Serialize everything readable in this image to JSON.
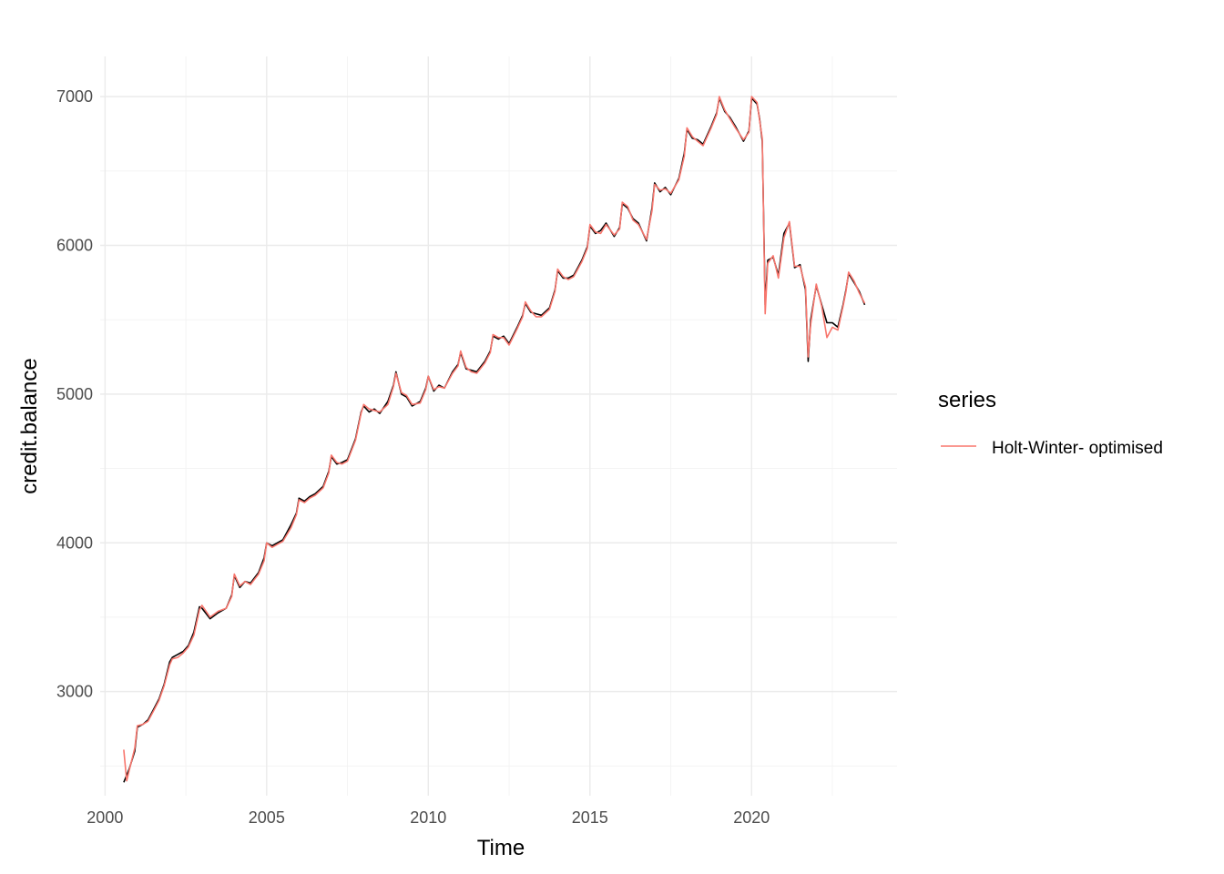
{
  "chart_data": {
    "type": "line",
    "title": "",
    "xlabel": "Time",
    "ylabel": "credit.balance",
    "xlim": [
      1999.85,
      2024.5
    ],
    "ylim": [
      2300,
      7270
    ],
    "x_ticks": [
      2000,
      2005,
      2010,
      2015,
      2020
    ],
    "x_tick_labels": [
      "2000",
      "2005",
      "2010",
      "2015",
      "2020"
    ],
    "y_ticks": [
      3000,
      4000,
      5000,
      6000,
      7000
    ],
    "y_tick_labels": [
      "3000",
      "4000",
      "5000",
      "6000",
      "7000"
    ],
    "grid": true,
    "legend": {
      "title": "series",
      "placement": "right",
      "entries": [
        "Holt-Winter- optimised"
      ]
    },
    "series": [
      {
        "color": "#000000",
        "x": [
          2000.58,
          2000.75,
          2000.92,
          2001.0,
          2001.17,
          2001.33,
          2001.5,
          2001.67,
          2001.83,
          2002.0,
          2002.08,
          2002.25,
          2002.42,
          2002.58,
          2002.75,
          2002.92,
          2003.0,
          2003.25,
          2003.5,
          2003.75,
          2003.92,
          2004.0,
          2004.17,
          2004.33,
          2004.5,
          2004.75,
          2004.92,
          2005.0,
          2005.17,
          2005.33,
          2005.5,
          2005.75,
          2005.92,
          2006.0,
          2006.17,
          2006.33,
          2006.5,
          2006.75,
          2006.92,
          2007.0,
          2007.17,
          2007.33,
          2007.5,
          2007.75,
          2007.92,
          2008.0,
          2008.17,
          2008.33,
          2008.5,
          2008.75,
          2008.92,
          2009.0,
          2009.17,
          2009.33,
          2009.5,
          2009.75,
          2009.92,
          2010.0,
          2010.17,
          2010.33,
          2010.5,
          2010.75,
          2010.92,
          2011.0,
          2011.17,
          2011.33,
          2011.5,
          2011.75,
          2011.92,
          2012.0,
          2012.17,
          2012.33,
          2012.5,
          2012.75,
          2012.92,
          2013.0,
          2013.17,
          2013.33,
          2013.5,
          2013.75,
          2013.92,
          2014.0,
          2014.17,
          2014.33,
          2014.5,
          2014.75,
          2014.92,
          2015.0,
          2015.17,
          2015.33,
          2015.5,
          2015.75,
          2015.92,
          2016.0,
          2016.17,
          2016.33,
          2016.5,
          2016.75,
          2016.92,
          2017.0,
          2017.17,
          2017.33,
          2017.5,
          2017.75,
          2017.92,
          2018.0,
          2018.17,
          2018.33,
          2018.5,
          2018.75,
          2018.92,
          2019.0,
          2019.17,
          2019.33,
          2019.5,
          2019.75,
          2019.92,
          2020.0,
          2020.17,
          2020.25,
          2020.33,
          2020.42,
          2020.5,
          2020.67,
          2020.83,
          2021.0,
          2021.17,
          2021.33,
          2021.5,
          2021.67,
          2021.75,
          2021.83,
          2022.0,
          2022.17,
          2022.33,
          2022.5,
          2022.67,
          2022.83,
          2022.92,
          2023.0,
          2023.17,
          2023.33,
          2023.5
        ],
        "values": [
          2390,
          2480,
          2600,
          2760,
          2780,
          2810,
          2880,
          2950,
          3050,
          3200,
          3230,
          3250,
          3270,
          3310,
          3400,
          3570,
          3560,
          3490,
          3530,
          3560,
          3650,
          3780,
          3700,
          3740,
          3730,
          3800,
          3900,
          4000,
          3980,
          4000,
          4020,
          4120,
          4200,
          4300,
          4280,
          4310,
          4330,
          4380,
          4480,
          4580,
          4530,
          4540,
          4560,
          4700,
          4880,
          4920,
          4880,
          4900,
          4870,
          4950,
          5060,
          5150,
          5000,
          4980,
          4920,
          4950,
          5040,
          5120,
          5020,
          5060,
          5040,
          5150,
          5200,
          5280,
          5170,
          5160,
          5150,
          5220,
          5290,
          5390,
          5370,
          5390,
          5340,
          5450,
          5530,
          5610,
          5550,
          5540,
          5530,
          5580,
          5700,
          5830,
          5780,
          5780,
          5800,
          5900,
          5990,
          6130,
          6080,
          6100,
          6150,
          6060,
          6120,
          6280,
          6250,
          6180,
          6150,
          6030,
          6250,
          6420,
          6360,
          6390,
          6340,
          6450,
          6620,
          6780,
          6720,
          6710,
          6680,
          6800,
          6890,
          6990,
          6900,
          6860,
          6800,
          6700,
          6770,
          6990,
          6950,
          6850,
          6700,
          5600,
          5900,
          5920,
          5800,
          6080,
          6150,
          5850,
          5870,
          5700,
          5220,
          5500,
          5730,
          5600,
          5480,
          5480,
          5450,
          5600,
          5700,
          5810,
          5750,
          5690,
          5600
        ]
      },
      {
        "color": "#f8766d",
        "x": [
          2000.58,
          2000.67,
          2000.75,
          2000.92,
          2001.0,
          2001.17,
          2001.33,
          2001.5,
          2001.67,
          2001.83,
          2002.0,
          2002.08,
          2002.25,
          2002.42,
          2002.58,
          2002.75,
          2002.92,
          2003.0,
          2003.25,
          2003.5,
          2003.75,
          2003.92,
          2004.0,
          2004.17,
          2004.33,
          2004.5,
          2004.75,
          2004.92,
          2005.0,
          2005.17,
          2005.33,
          2005.5,
          2005.75,
          2005.92,
          2006.0,
          2006.17,
          2006.33,
          2006.5,
          2006.75,
          2006.92,
          2007.0,
          2007.17,
          2007.33,
          2007.5,
          2007.75,
          2007.92,
          2008.0,
          2008.17,
          2008.33,
          2008.5,
          2008.75,
          2008.92,
          2009.0,
          2009.17,
          2009.33,
          2009.5,
          2009.75,
          2009.92,
          2010.0,
          2010.17,
          2010.33,
          2010.5,
          2010.75,
          2010.92,
          2011.0,
          2011.17,
          2011.33,
          2011.5,
          2011.75,
          2011.92,
          2012.0,
          2012.17,
          2012.33,
          2012.5,
          2012.75,
          2012.92,
          2013.0,
          2013.17,
          2013.33,
          2013.5,
          2013.75,
          2013.92,
          2014.0,
          2014.17,
          2014.33,
          2014.5,
          2014.75,
          2014.92,
          2015.0,
          2015.17,
          2015.33,
          2015.5,
          2015.75,
          2015.92,
          2016.0,
          2016.17,
          2016.33,
          2016.5,
          2016.75,
          2016.92,
          2017.0,
          2017.17,
          2017.33,
          2017.5,
          2017.75,
          2017.92,
          2018.0,
          2018.17,
          2018.33,
          2018.5,
          2018.75,
          2018.92,
          2019.0,
          2019.17,
          2019.33,
          2019.5,
          2019.75,
          2019.92,
          2020.0,
          2020.17,
          2020.25,
          2020.33,
          2020.42,
          2020.5,
          2020.67,
          2020.83,
          2021.0,
          2021.17,
          2021.33,
          2021.5,
          2021.67,
          2021.75,
          2021.83,
          2022.0,
          2022.17,
          2022.33,
          2022.5,
          2022.67,
          2022.83,
          2022.92,
          2023.0,
          2023.17,
          2023.33,
          2023.5
        ],
        "values": [
          2610,
          2400,
          2470,
          2620,
          2770,
          2780,
          2800,
          2870,
          2940,
          3040,
          3180,
          3220,
          3230,
          3260,
          3300,
          3380,
          3550,
          3580,
          3500,
          3540,
          3560,
          3640,
          3790,
          3710,
          3740,
          3720,
          3790,
          3880,
          4000,
          3970,
          3990,
          4010,
          4100,
          4190,
          4290,
          4270,
          4300,
          4320,
          4370,
          4470,
          4590,
          4540,
          4530,
          4550,
          4690,
          4870,
          4930,
          4900,
          4890,
          4880,
          4930,
          5050,
          5140,
          5010,
          4990,
          4930,
          4940,
          5030,
          5120,
          5030,
          5050,
          5040,
          5140,
          5190,
          5290,
          5180,
          5150,
          5140,
          5210,
          5280,
          5400,
          5380,
          5380,
          5330,
          5440,
          5520,
          5620,
          5560,
          5520,
          5520,
          5570,
          5690,
          5840,
          5790,
          5770,
          5790,
          5890,
          5980,
          6140,
          6090,
          6080,
          6140,
          6070,
          6110,
          6290,
          6260,
          6170,
          6140,
          6040,
          6230,
          6410,
          6370,
          6380,
          6350,
          6440,
          6600,
          6790,
          6730,
          6700,
          6670,
          6790,
          6880,
          7000,
          6910,
          6850,
          6790,
          6710,
          6760,
          7000,
          6960,
          6840,
          6720,
          5540,
          5880,
          5930,
          5780,
          6050,
          6160,
          5860,
          5860,
          5720,
          5250,
          5470,
          5740,
          5590,
          5380,
          5450,
          5430,
          5590,
          5690,
          5820,
          5760,
          5680,
          5610
        ]
      }
    ]
  }
}
